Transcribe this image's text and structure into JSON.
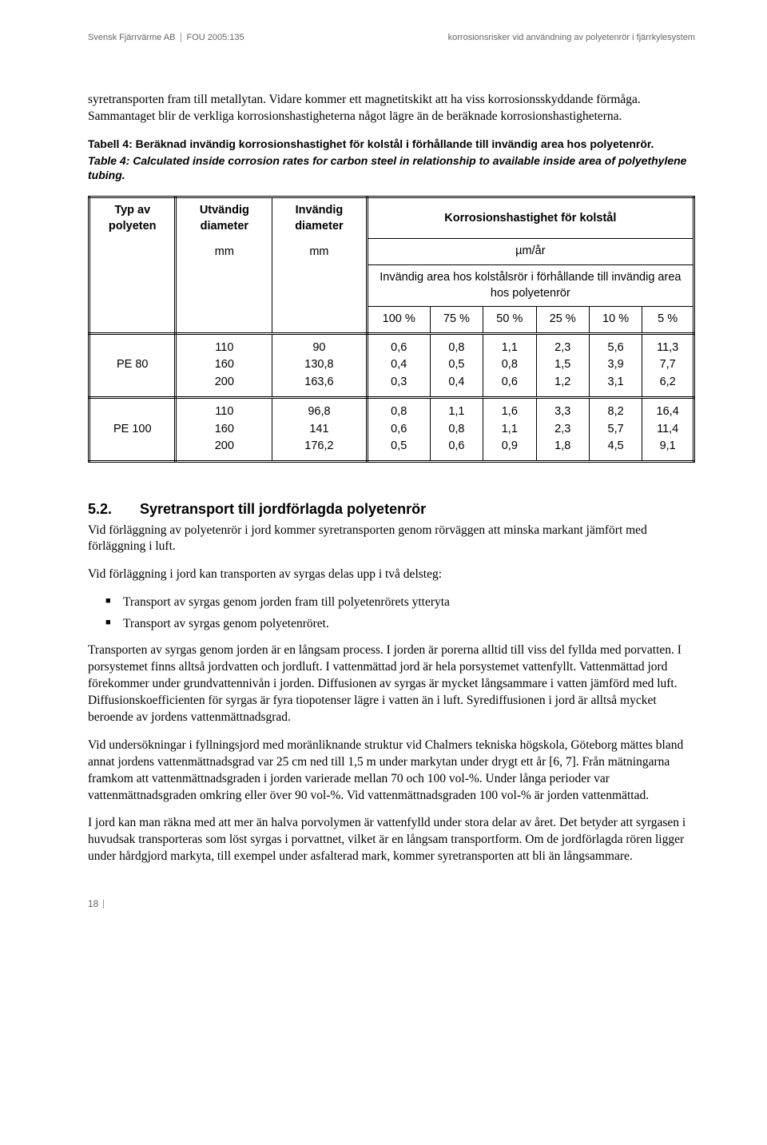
{
  "header": {
    "left_a": "Svensk Fjärrvärme AB",
    "left_b": "FOU 2005:135",
    "right": "korrosionsrisker vid användning av polyetenrör i fjärrkylesystem"
  },
  "intro_para": "syretransporten fram till metallytan. Vidare kommer ett magnetitskikt att ha viss korrosionsskyddande förmåga. Sammantaget blir de verkliga korrosionshastigheterna något lägre än de beräknade korrosionshastigheterna.",
  "caption_bold": "Tabell 4: Beräknad invändig korrosionshastighet för kolstål i förhållande till invändig area hos polyetenrör.",
  "caption_italic": "Table 4: Calculated inside corrosion rates for carbon steel in relationship to available inside area of polyethylene tubing.",
  "table": {
    "h_type": "Typ av polyeten",
    "h_outer": "Utvändig diameter",
    "h_inner": "Invändig diameter",
    "h_rate": "Korrosionshastighet för kolstål",
    "unit_mm_a": "mm",
    "unit_mm_b": "mm",
    "unit_rate": "µm/år",
    "ratio_label": "Invändig area hos kolstålsrör i förhållande till invändig area hos polyetenrör",
    "pct100": "100 %",
    "pct75": "75 %",
    "pct50": "50 %",
    "pct25": "25 %",
    "pct10": "10 %",
    "pct5": "5 %",
    "r1_type": "PE 80",
    "r1_outer": "110\n160\n200",
    "r1_inner": "90\n130,8\n163,6",
    "r1_c100": "0,6\n0,4\n0,3",
    "r1_c75": "0,8\n0,5\n0,4",
    "r1_c50": "1,1\n0,8\n0,6",
    "r1_c25": "2,3\n1,5\n1,2",
    "r1_c10": "5,6\n3,9\n3,1",
    "r1_c5": "11,3\n7,7\n6,2",
    "r2_type": "PE 100",
    "r2_outer": "110\n160\n200",
    "r2_inner": "96,8\n141\n176,2",
    "r2_c100": "0,8\n0,6\n0,5",
    "r2_c75": "1,1\n0,8\n0,6",
    "r2_c50": "1,6\n1,1\n0,9",
    "r2_c25": "3,3\n2,3\n1,8",
    "r2_c10": "8,2\n5,7\n4,5",
    "r2_c5": "16,4\n11,4\n9,1"
  },
  "section": {
    "num": "5.2.",
    "title": "Syretransport till jordförlagda polyetenrör"
  },
  "p2": "Vid förläggning av polyetenrör i jord kommer syretransporten genom rörväggen att minska markant jämfört med förläggning i luft.",
  "p3": "Vid förläggning i jord kan transporten av syrgas delas upp i två delsteg:",
  "b1": "Transport av syrgas genom jorden fram till polyetenrörets ytteryta",
  "b2": "Transport av syrgas genom polyetenröret.",
  "p4": "Transporten av syrgas genom jorden är en långsam process. I jorden är porerna alltid till viss del fyllda med porvatten. I porsystemet finns alltså jordvatten och jordluft. I vattenmättad jord är hela porsystemet vattenfyllt. Vattenmättad jord förekommer under grundvattennivån i jorden. Diffusionen av syrgas är mycket långsammare i vatten jämförd med luft. Diffusionskoefficienten för syrgas är fyra tiopotenser lägre i vatten än i luft. Syrediffusionen i jord är alltså mycket beroende av jordens vattenmättnadsgrad.",
  "p5": "Vid undersökningar i fyllningsjord med moränliknande struktur vid Chalmers tekniska högskola, Göteborg mättes bland annat jordens vattenmättnadsgrad var 25 cm ned till 1,5 m under markytan under drygt ett år [6, 7]. Från mätningarna framkom att vattenmättnadsgraden i jorden varierade mellan 70 och 100 vol-%. Under långa perioder var vattenmättnadsgraden omkring eller över 90 vol-%. Vid vattenmättnadsgraden 100 vol-% är jorden vattenmättad.",
  "p6": "I jord kan man räkna med att mer än halva porvolymen är vattenfylld under stora delar av året. Det betyder att syrgasen i huvudsak transporteras som löst syrgas i porvattnet, vilket är en långsam transportform. Om de jordförlagda rören ligger under hårdgjord markyta, till exempel under asfalterad mark, kommer syretransporten att bli än långsammare.",
  "footer": {
    "page": "18"
  }
}
